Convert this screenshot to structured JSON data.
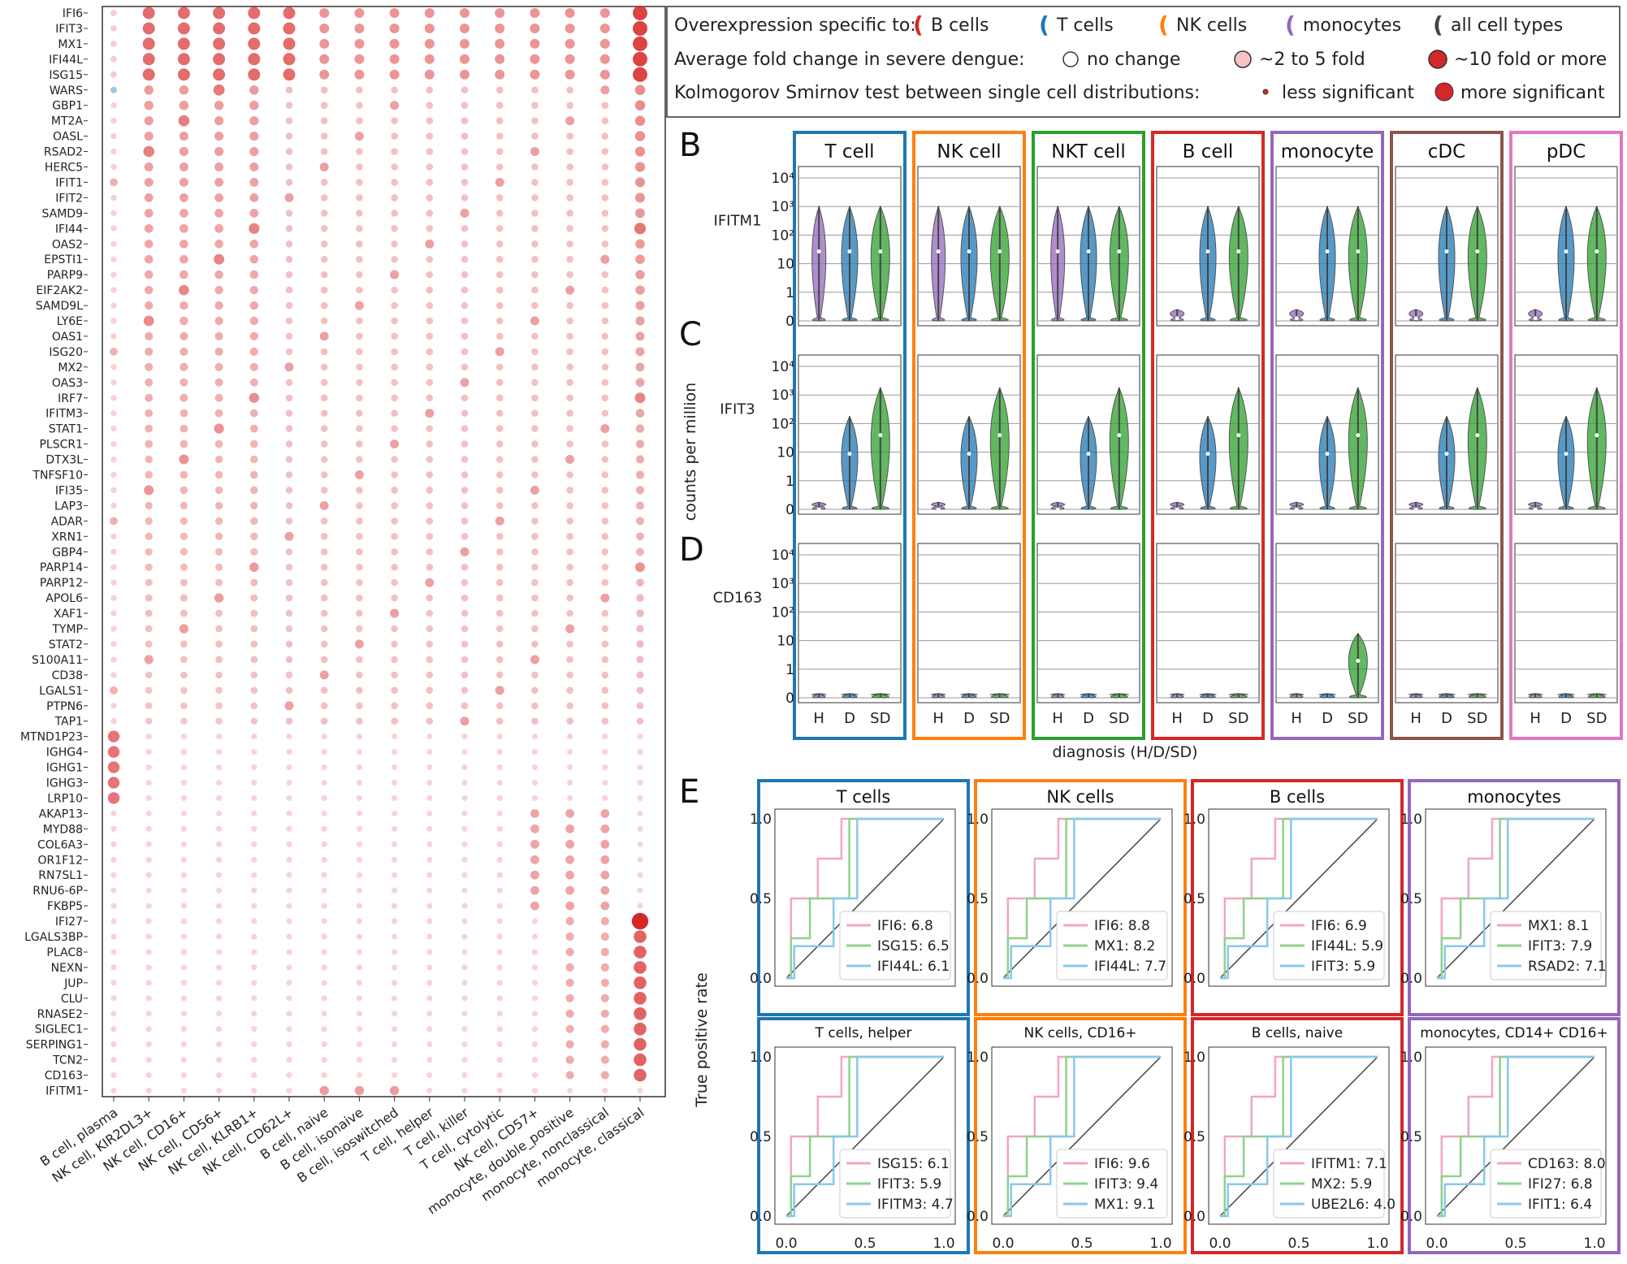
{
  "colors": {
    "t": "#1f77b4",
    "nk": "#ff7f0e",
    "nkt": "#2ca02c",
    "b": "#d62728",
    "mono": "#9467bd",
    "cdc": "#8c564b",
    "pdc": "#e377c2",
    "violin_h": "#9467bd",
    "violin_d": "#1f77b4",
    "violin_sd": "#2ca02c",
    "dot": "#d62728",
    "roc1": "#f4a6c0",
    "roc2": "#8fd18a",
    "roc3": "#88c8ee"
  },
  "panel_labels": {
    "b": "B",
    "c": "C",
    "d": "D",
    "e": "E"
  },
  "legend": {
    "row1_title": "Overexpression specific to:",
    "row1_items": [
      "B cells",
      "T cells",
      "NK cells",
      "monocytes",
      "all cell types"
    ],
    "row2_title": "Average fold change in severe dengue:",
    "row2_items": [
      "no change",
      "~2 to 5 fold",
      "~10 fold or more"
    ],
    "row3_title": "Kolmogorov Smirnov test between single cell distributions:",
    "row3_items": [
      "less significant",
      "more significant"
    ]
  },
  "chart_data": [
    {
      "type": "scatter",
      "name": "dotplot",
      "genes": [
        "IFI6",
        "IFIT3",
        "MX1",
        "IFI44L",
        "ISG15",
        "WARS",
        "GBP1",
        "MT2A",
        "OASL",
        "RSAD2",
        "HERC5",
        "IFIT1",
        "IFIT2",
        "SAMD9",
        "IFI44",
        "OAS2",
        "EPSTI1",
        "PARP9",
        "EIF2AK2",
        "SAMD9L",
        "LY6E",
        "OAS1",
        "ISG20",
        "MX2",
        "OAS3",
        "IRF7",
        "IFITM3",
        "STAT1",
        "PLSCR1",
        "DTX3L",
        "TNFSF10",
        "IFI35",
        "LAP3",
        "ADAR",
        "XRN1",
        "GBP4",
        "PARP14",
        "PARP12",
        "APOL6",
        "XAF1",
        "TYMP",
        "STAT2",
        "S100A11",
        "CD38",
        "LGALS1",
        "PTPN6",
        "TAP1",
        "MTND1P23",
        "IGHG4",
        "IGHG1",
        "IGHG3",
        "LRP10",
        "AKAP13",
        "MYD88",
        "COL6A3",
        "OR1F12",
        "RN7SL1",
        "RNU6-6P",
        "FKBP5",
        "IFI27",
        "LGALS3BP",
        "PLAC8",
        "NEXN",
        "JUP",
        "CLU",
        "RNASE2",
        "SIGLEC1",
        "SERPING1",
        "TCN2",
        "CD163",
        "IFITM1"
      ],
      "cell_types": [
        "B cell, plasma",
        "NK cell, KIR2DL3+",
        "NK cell, CD16+",
        "NK cell, CD56+",
        "NK cell, KLRB1+",
        "NK cell, CD62L+",
        "B cell, naive",
        "B cell, isonaive",
        "B cell, isoswitched",
        "T cell, helper",
        "T cell, killer",
        "T cell, cytolytic",
        "NK cell, CD57+",
        "monocyte, double_positive",
        "monocyte, nonclassical",
        "monocyte, classical"
      ]
    },
    {
      "type": "violin",
      "name": "violins",
      "panels": [
        "T cell",
        "NK cell",
        "NKT cell",
        "B cell",
        "monocyte",
        "cDC",
        "pDC"
      ],
      "genes": [
        "IFITM1",
        "IFIT3",
        "CD163"
      ],
      "x": [
        "H",
        "D",
        "SD"
      ],
      "xlabel": "diagnosis (H/D/SD)",
      "ylabel": "counts per million",
      "yticks": [
        "0",
        "1",
        "10",
        "10²",
        "10³",
        "10⁴"
      ]
    },
    {
      "type": "line",
      "name": "roc",
      "ylabel": "True positive rate",
      "xticks": [
        "0.0",
        "0.5",
        "1.0"
      ],
      "yticks": [
        "0.0",
        "0.5",
        "1.0"
      ],
      "panels": [
        {
          "title": "T cells",
          "legend": [
            "IFI6: 6.8",
            "ISG15: 6.5",
            "IFI44L: 6.1"
          ]
        },
        {
          "title": "NK cells",
          "legend": [
            "IFI6: 8.8",
            "MX1: 8.2",
            "IFI44L: 7.7"
          ]
        },
        {
          "title": "B cells",
          "legend": [
            "IFI6: 6.9",
            "IFI44L: 5.9",
            "IFIT3: 5.9"
          ]
        },
        {
          "title": "monocytes",
          "legend": [
            "MX1: 8.1",
            "IFIT3: 7.9",
            "RSAD2: 7.1"
          ]
        },
        {
          "title": "T cells, helper",
          "legend": [
            "ISG15: 6.1",
            "IFIT3: 5.9",
            "IFITM3: 4.7"
          ]
        },
        {
          "title": "NK cells, CD16+",
          "legend": [
            "IFI6: 9.6",
            "IFIT3: 9.4",
            "MX1: 9.1"
          ]
        },
        {
          "title": "B cells, naive",
          "legend": [
            "IFITM1: 7.1",
            "MX2: 5.9",
            "UBE2L6: 4.0"
          ]
        },
        {
          "title": "monocytes, CD14+ CD16+",
          "legend": [
            "CD163: 8.0",
            "IFI27: 6.8",
            "IFIT1: 6.4"
          ]
        }
      ]
    }
  ]
}
